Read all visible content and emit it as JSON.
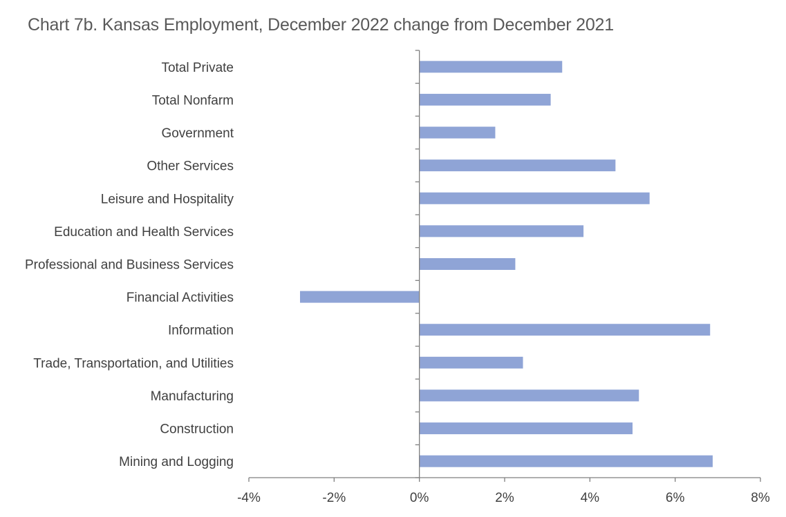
{
  "chart_data": {
    "type": "bar",
    "orientation": "horizontal",
    "title": "Chart 7b. Kansas Employment, December 2022 change from December 2021",
    "xlabel": "",
    "ylabel": "",
    "categories": [
      "Total Private",
      "Total Nonfarm",
      "Government",
      "Other Services",
      "Leisure and Hospitality",
      "Education and Health Services",
      "Professional and Business Services",
      "Financial Activities",
      "Information",
      "Trade, Transportation, and Utilities",
      "Manufacturing",
      "Construction",
      "Mining and Logging"
    ],
    "values": [
      3.35,
      3.08,
      1.78,
      4.6,
      5.4,
      3.85,
      2.25,
      -2.8,
      6.82,
      2.43,
      5.15,
      5.0,
      6.88
    ],
    "value_unit": "percent",
    "xlim": [
      -4,
      8
    ],
    "xticks": [
      -4,
      -2,
      0,
      2,
      4,
      6,
      8
    ],
    "xtick_labels": [
      "-4%",
      "-2%",
      "0%",
      "2%",
      "4%",
      "6%",
      "8%"
    ],
    "bar_color": "#8fa4d6",
    "axis_color": "#7f7f7f",
    "grid": false,
    "legend": "none"
  }
}
